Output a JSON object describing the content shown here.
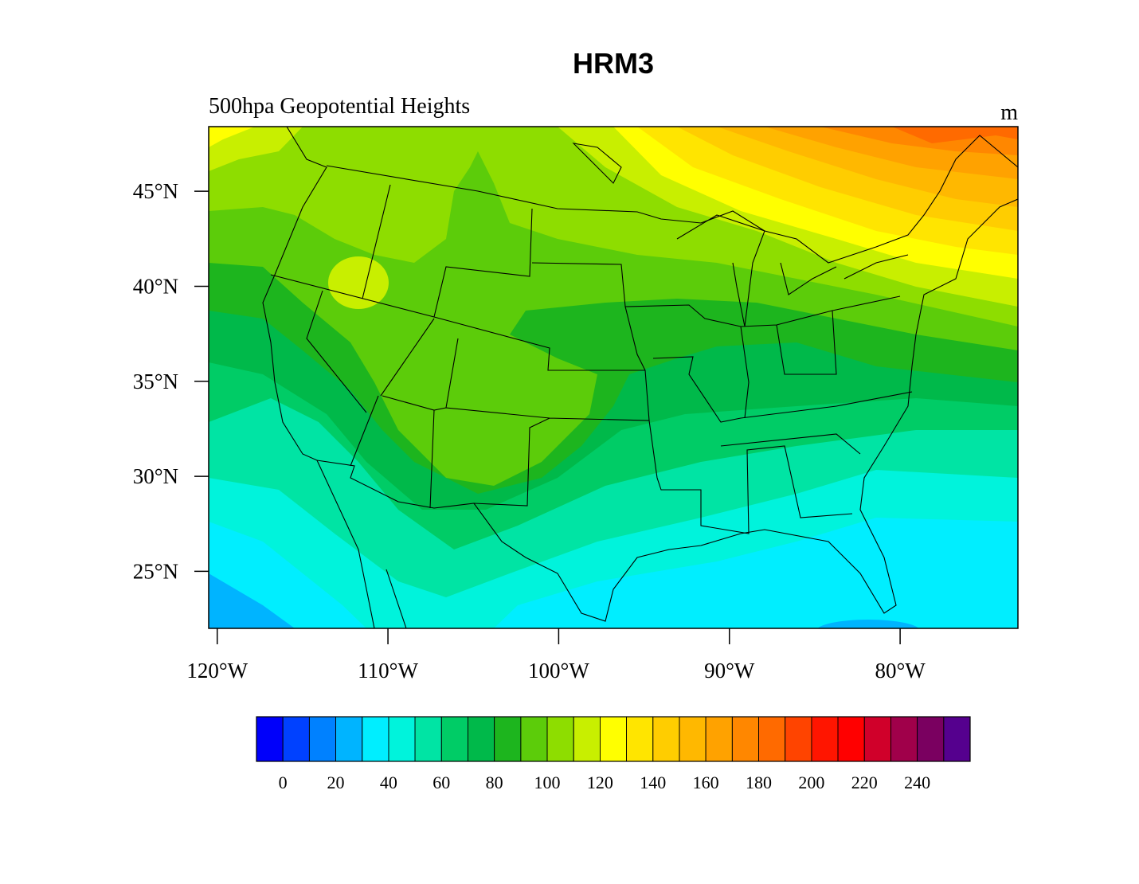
{
  "title": "HRM3",
  "subtitle": "500hpa Geopotential Heights",
  "units": "m",
  "map": {
    "lon_range": [
      -120.5,
      -73.1
    ],
    "lat_range": [
      22.0,
      48.4
    ],
    "lat_ticks": [
      {
        "value": 45,
        "label": "45°N"
      },
      {
        "value": 40,
        "label": "40°N"
      },
      {
        "value": 35,
        "label": "35°N"
      },
      {
        "value": 30,
        "label": "30°N"
      },
      {
        "value": 25,
        "label": "25°N"
      }
    ],
    "lon_ticks": [
      {
        "value": -120,
        "label": "120°W"
      },
      {
        "value": -110,
        "label": "110°W"
      },
      {
        "value": -100,
        "label": "100°W"
      },
      {
        "value": -90,
        "label": "90°W"
      },
      {
        "value": -80,
        "label": "80°W"
      }
    ]
  },
  "colorbar": {
    "boundaries": [
      0,
      10,
      20,
      30,
      40,
      50,
      60,
      70,
      80,
      90,
      100,
      110,
      120,
      130,
      140,
      150,
      160,
      170,
      180,
      190,
      200,
      210,
      220,
      230,
      240,
      250
    ],
    "labels": [
      0,
      20,
      40,
      60,
      80,
      100,
      120,
      140,
      160,
      180,
      200,
      220,
      240
    ],
    "colors": [
      "#0000fa",
      "#0041ff",
      "#0081ff",
      "#00b4ff",
      "#00eeff",
      "#00f3dc",
      "#00e4a4",
      "#00cc66",
      "#00b94a",
      "#1db51e",
      "#5ccc0a",
      "#8edd00",
      "#c8ef00",
      "#ffff00",
      "#ffe500",
      "#ffcd00",
      "#ffb800",
      "#ffa200",
      "#ff8700",
      "#ff6a00",
      "#ff4400",
      "#ff1500",
      "#ff0000",
      "#d0002a",
      "#a0004a",
      "#7a0060",
      "#55008e"
    ]
  }
}
